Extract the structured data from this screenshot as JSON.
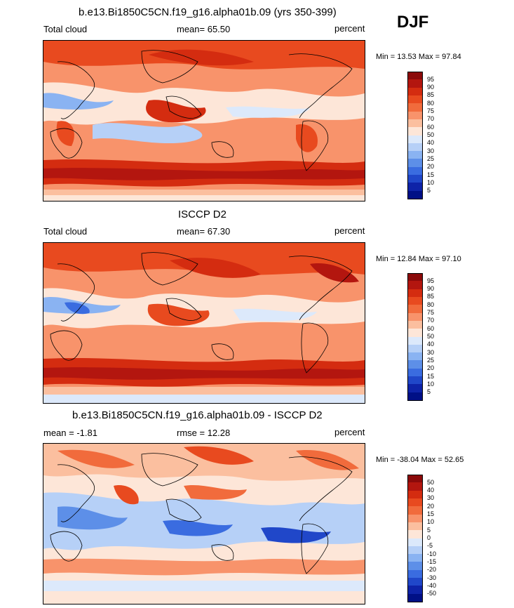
{
  "season": "DJF",
  "panels": [
    {
      "title": "b.e13.Bi1850C5CN.f19_g16.alpha01b.09 (yrs 350-399)",
      "left_label": "Total cloud",
      "center_label": "mean=  65.50",
      "units": "percent",
      "minmax": "Min =  13.53 Max =  97.84",
      "levels": [
        "95",
        "90",
        "85",
        "80",
        "75",
        "70",
        "60",
        "50",
        "40",
        "30",
        "25",
        "20",
        "15",
        "10",
        "5"
      ],
      "colors": [
        "#8b0a0a",
        "#b3160f",
        "#d42c10",
        "#e84a1f",
        "#f16b3c",
        "#f8936b",
        "#fbbf9f",
        "#fde6d8",
        "#dce9fb",
        "#b6d0f7",
        "#8ab3f2",
        "#5d8fe8",
        "#3a6ce0",
        "#2047c9",
        "#0e23a8",
        "#001086"
      ]
    },
    {
      "title": "ISCCP D2",
      "left_label": "Total cloud",
      "center_label": "mean=  67.30",
      "units": "percent",
      "minmax": "Min =  12.84 Max =  97.10",
      "levels": [
        "95",
        "90",
        "85",
        "80",
        "75",
        "70",
        "60",
        "50",
        "40",
        "30",
        "25",
        "20",
        "15",
        "10",
        "5"
      ],
      "colors": [
        "#8b0a0a",
        "#b3160f",
        "#d42c10",
        "#e84a1f",
        "#f16b3c",
        "#f8936b",
        "#fbbf9f",
        "#fde6d8",
        "#dce9fb",
        "#b6d0f7",
        "#8ab3f2",
        "#5d8fe8",
        "#3a6ce0",
        "#2047c9",
        "#0e23a8",
        "#001086"
      ]
    },
    {
      "title": "b.e13.Bi1850C5CN.f19_g16.alpha01b.09 - ISCCP D2",
      "left_label": "mean =  -1.81",
      "center_label": "rmse =  12.28",
      "units": "percent",
      "minmax": "Min = -38.04 Max =  52.65",
      "levels": [
        "50",
        "40",
        "30",
        "20",
        "15",
        "10",
        "5",
        "0",
        "-5",
        "-10",
        "-15",
        "-20",
        "-30",
        "-40",
        "-50"
      ],
      "colors": [
        "#8b0a0a",
        "#b3160f",
        "#d42c10",
        "#e84a1f",
        "#f16b3c",
        "#f8936b",
        "#fbbf9f",
        "#fde6d8",
        "#dce9fb",
        "#b6d0f7",
        "#8ab3f2",
        "#5d8fe8",
        "#3a6ce0",
        "#2047c9",
        "#0e23a8",
        "#001086"
      ]
    }
  ]
}
